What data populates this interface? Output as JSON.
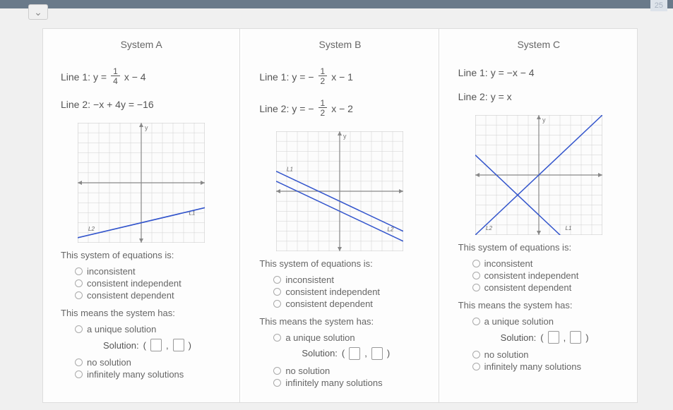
{
  "page_number": "25",
  "systems": [
    {
      "title": "System A",
      "line1_label": "Line 1:",
      "line1_eq": {
        "prefix": "y =",
        "num": "1",
        "den": "4",
        "suffix": "x − 4"
      },
      "line2_label": "Line 2:",
      "line2_plain": "−x + 4y = −16",
      "graph": {
        "xlim": [
          -6,
          6
        ],
        "ylim": [
          -6,
          6
        ],
        "grid_color": "#d0d0d0",
        "axis_color": "#888",
        "lines": [
          {
            "slope": 0.25,
            "intercept": -4,
            "color": "#3355cc",
            "label": "L1",
            "lx": 4.5,
            "ly": -3.2
          },
          {
            "slope": 0.25,
            "intercept": -4,
            "color": "#3355cc",
            "label": "L2",
            "lx": -5,
            "ly": -4.8
          }
        ]
      }
    },
    {
      "title": "System B",
      "line1_label": "Line 1:",
      "line1_eq": {
        "prefix": "y = −",
        "num": "1",
        "den": "2",
        "suffix": "x − 1"
      },
      "line2_label": "Line 2:",
      "line2_eq": {
        "prefix": "y = −",
        "num": "1",
        "den": "2",
        "suffix": "x − 2"
      },
      "graph": {
        "xlim": [
          -6,
          6
        ],
        "ylim": [
          -6,
          6
        ],
        "grid_color": "#d0d0d0",
        "axis_color": "#888",
        "lines": [
          {
            "slope": -0.5,
            "intercept": -1,
            "color": "#3355cc",
            "label": "L1",
            "lx": -5,
            "ly": 2
          },
          {
            "slope": -0.5,
            "intercept": -2,
            "color": "#3355cc",
            "label": "L2",
            "lx": 4.5,
            "ly": -4
          }
        ]
      }
    },
    {
      "title": "System C",
      "line1_label": "Line 1:",
      "line1_plain_eq": "y = −x − 4",
      "line2_label": "Line 2:",
      "line2_plain": "y = x",
      "graph": {
        "xlim": [
          -6,
          6
        ],
        "ylim": [
          -6,
          6
        ],
        "grid_color": "#d0d0d0",
        "axis_color": "#888",
        "lines": [
          {
            "slope": -1,
            "intercept": -4,
            "color": "#3355cc",
            "label": "L1",
            "lx": 2.5,
            "ly": -5.5
          },
          {
            "slope": 1,
            "intercept": 0,
            "color": "#3355cc",
            "label": "L2",
            "lx": -5,
            "ly": -5.5
          }
        ]
      }
    }
  ],
  "q1_prompt": "This system of equations is:",
  "q1_options": [
    "inconsistent",
    "consistent independent",
    "consistent dependent"
  ],
  "q2_prompt": "This means the system has:",
  "q2_opt_unique": "a unique solution",
  "solution_label": "Solution:",
  "q2_opt_none": "no solution",
  "q2_opt_inf": "infinitely many solutions"
}
